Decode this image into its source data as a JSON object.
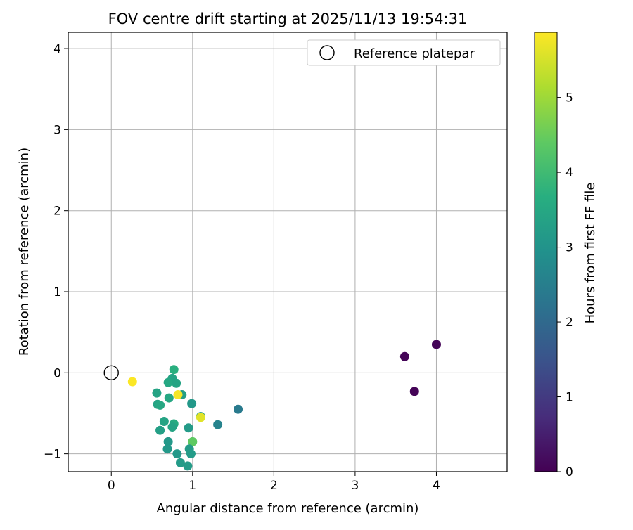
{
  "chart_data": {
    "type": "scatter",
    "title": "FOV centre drift starting at 2025/11/13 19:54:31",
    "xlabel": "Angular distance from reference (arcmin)",
    "ylabel": "Rotation from reference (arcmin)",
    "xlim": [
      -0.53,
      4.87
    ],
    "ylim": [
      -1.22,
      4.2
    ],
    "xticks": [
      0,
      1,
      2,
      3,
      4
    ],
    "yticks": [
      -1,
      0,
      1,
      2,
      3,
      4
    ],
    "xtick_labels": [
      "0",
      "1",
      "2",
      "3",
      "4"
    ],
    "ytick_labels": [
      "−1",
      "0",
      "1",
      "2",
      "3",
      "4"
    ],
    "grid": true,
    "legend": {
      "position": "top-right",
      "label": "Reference platepar"
    },
    "reference_point": {
      "x": 0,
      "y": 0
    },
    "colorbar": {
      "label": "Hours from first FF file",
      "min": 0,
      "max": 5.87,
      "ticks": [
        0,
        1,
        2,
        3,
        4,
        5
      ],
      "tick_labels": [
        "0",
        "1",
        "2",
        "3",
        "4",
        "5"
      ],
      "colormap": "viridis"
    },
    "points": [
      {
        "x": 3.61,
        "y": 0.2,
        "c": 0.05
      },
      {
        "x": 4.0,
        "y": 0.35,
        "c": 0.05
      },
      {
        "x": 3.73,
        "y": -0.23,
        "c": 0.05
      },
      {
        "x": 1.56,
        "y": -0.45,
        "c": 2.4
      },
      {
        "x": 1.31,
        "y": -0.64,
        "c": 2.6
      },
      {
        "x": 0.77,
        "y": 0.04,
        "c": 3.7
      },
      {
        "x": 0.75,
        "y": -0.07,
        "c": 3.4
      },
      {
        "x": 0.7,
        "y": -0.12,
        "c": 3.5
      },
      {
        "x": 0.8,
        "y": -0.13,
        "c": 3.4
      },
      {
        "x": 0.56,
        "y": -0.25,
        "c": 3.4
      },
      {
        "x": 0.87,
        "y": -0.27,
        "c": 3.3
      },
      {
        "x": 0.71,
        "y": -0.31,
        "c": 3.5
      },
      {
        "x": 0.57,
        "y": -0.39,
        "c": 3.4
      },
      {
        "x": 0.6,
        "y": -0.4,
        "c": 3.5
      },
      {
        "x": 0.99,
        "y": -0.38,
        "c": 3.1
      },
      {
        "x": 0.65,
        "y": -0.6,
        "c": 3.4
      },
      {
        "x": 0.77,
        "y": -0.63,
        "c": 3.6
      },
      {
        "x": 0.75,
        "y": -0.67,
        "c": 3.4
      },
      {
        "x": 0.6,
        "y": -0.71,
        "c": 3.3
      },
      {
        "x": 0.95,
        "y": -0.68,
        "c": 3.2
      },
      {
        "x": 0.7,
        "y": -0.85,
        "c": 3.1
      },
      {
        "x": 1.0,
        "y": -0.85,
        "c": 4.4
      },
      {
        "x": 0.69,
        "y": -0.94,
        "c": 3.1
      },
      {
        "x": 0.96,
        "y": -0.94,
        "c": 3.2
      },
      {
        "x": 0.81,
        "y": -1.0,
        "c": 3.1
      },
      {
        "x": 0.98,
        "y": -1.0,
        "c": 3.2
      },
      {
        "x": 0.85,
        "y": -1.11,
        "c": 3.2
      },
      {
        "x": 0.94,
        "y": -1.15,
        "c": 3.2
      },
      {
        "x": 1.1,
        "y": -0.54,
        "c": 3.2
      },
      {
        "x": 1.1,
        "y": -0.55,
        "c": 5.6
      },
      {
        "x": 0.82,
        "y": -0.27,
        "c": 5.8
      },
      {
        "x": 0.26,
        "y": -0.11,
        "c": 5.85
      }
    ]
  }
}
